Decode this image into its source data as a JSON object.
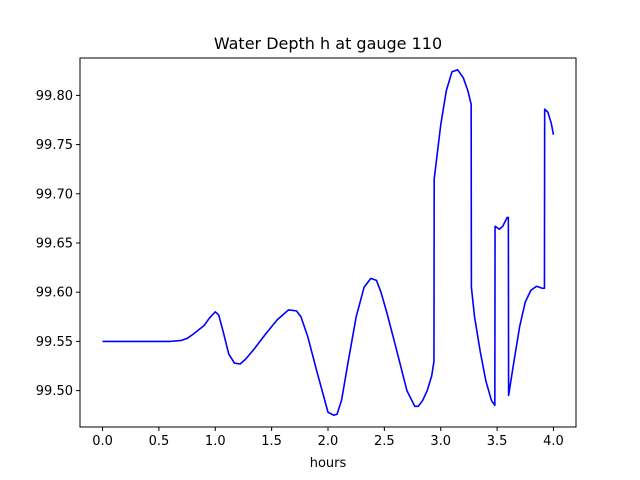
{
  "chart_data": {
    "type": "line",
    "title": "Water Depth h at gauge 110",
    "xlabel": "hours",
    "ylabel": "",
    "xlim": [
      -0.2,
      4.2
    ],
    "ylim": [
      99.463,
      99.838
    ],
    "xticks": [
      0.0,
      0.5,
      1.0,
      1.5,
      2.0,
      2.5,
      3.0,
      3.5,
      4.0
    ],
    "xtick_labels": [
      "0.0",
      "0.5",
      "1.0",
      "1.5",
      "2.0",
      "2.5",
      "3.0",
      "3.5",
      "4.0"
    ],
    "yticks": [
      99.5,
      99.55,
      99.6,
      99.65,
      99.7,
      99.75,
      99.8
    ],
    "ytick_labels": [
      "99.50",
      "99.55",
      "99.60",
      "99.65",
      "99.70",
      "99.75",
      "99.80"
    ],
    "grid": false,
    "series": [
      {
        "name": "",
        "color": "#0000ff",
        "x": [
          0.0,
          0.3,
          0.5,
          0.6,
          0.7,
          0.75,
          0.8,
          0.9,
          0.95,
          1.0,
          1.03,
          1.07,
          1.12,
          1.17,
          1.22,
          1.27,
          1.35,
          1.45,
          1.55,
          1.65,
          1.72,
          1.76,
          1.82,
          1.9,
          2.0,
          2.05,
          2.08,
          2.12,
          2.18,
          2.25,
          2.32,
          2.38,
          2.43,
          2.47,
          2.52,
          2.6,
          2.7,
          2.77,
          2.8,
          2.84,
          2.88,
          2.92,
          2.94,
          2.942,
          3.0,
          3.05,
          3.1,
          3.15,
          3.2,
          3.24,
          3.27,
          3.272,
          3.3,
          3.35,
          3.4,
          3.45,
          3.48,
          3.482,
          3.52,
          3.55,
          3.59,
          3.6,
          3.602,
          3.65,
          3.7,
          3.75,
          3.8,
          3.85,
          3.9,
          3.92,
          3.922,
          3.95,
          3.98,
          4.0
        ],
        "y": [
          99.55,
          99.55,
          99.55,
          99.55,
          99.551,
          99.553,
          99.557,
          99.566,
          99.574,
          99.58,
          99.577,
          99.56,
          99.537,
          99.528,
          99.527,
          99.532,
          99.543,
          99.558,
          99.572,
          99.582,
          99.581,
          99.575,
          99.555,
          99.52,
          99.478,
          99.475,
          99.476,
          99.49,
          99.53,
          99.575,
          99.605,
          99.614,
          99.612,
          99.6,
          99.58,
          99.545,
          99.5,
          99.484,
          99.484,
          99.49,
          99.5,
          99.515,
          99.53,
          99.715,
          99.77,
          99.805,
          99.824,
          99.826,
          99.818,
          99.805,
          99.791,
          99.605,
          99.575,
          99.54,
          99.51,
          99.49,
          99.485,
          99.667,
          99.664,
          99.667,
          99.676,
          99.676,
          99.495,
          99.53,
          99.565,
          99.59,
          99.602,
          99.606,
          99.604,
          99.604,
          99.786,
          99.783,
          99.772,
          99.76
        ]
      }
    ]
  }
}
